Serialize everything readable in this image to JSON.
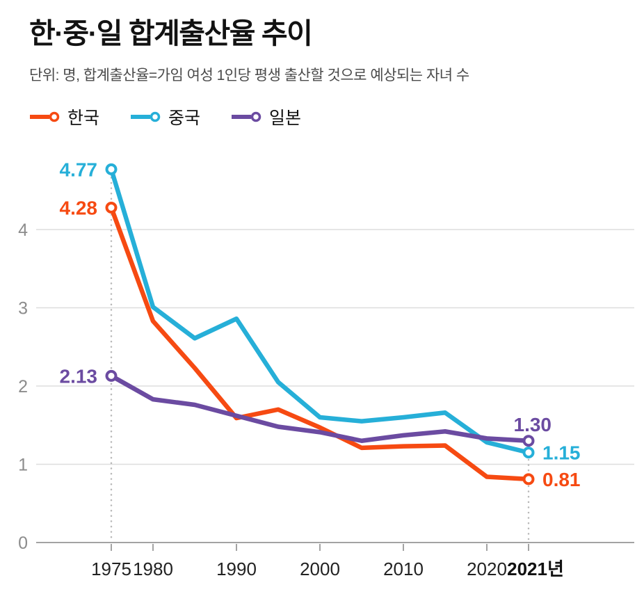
{
  "header": {
    "title": "한·중·일 합계출산율 추이",
    "subtitle": "단위: 명, 합계출산율=가임 여성 1인당 평생 출산할 것으로 예상되는 자녀 수"
  },
  "legend": [
    {
      "key": "korea",
      "label": "한국",
      "color": "#f64a12"
    },
    {
      "key": "china",
      "label": "중국",
      "color": "#26afd8"
    },
    {
      "key": "japan",
      "label": "일본",
      "color": "#6b4ba1"
    }
  ],
  "chart_data": {
    "type": "line",
    "title": "한·중·일 합계출산율 추이",
    "unit": "명",
    "categories": [
      "1975",
      "1980",
      "1985",
      "1990",
      "1995",
      "2000",
      "2005",
      "2010",
      "2015",
      "2020",
      "2021"
    ],
    "series": [
      {
        "key": "korea",
        "name": "한국",
        "color": "#f64a12",
        "values": [
          4.28,
          2.83,
          2.23,
          1.59,
          1.7,
          1.47,
          1.21,
          1.23,
          1.24,
          0.84,
          0.81
        ],
        "start_label": "4.28",
        "end_label": "0.81",
        "end_label_placement": "right"
      },
      {
        "key": "china",
        "name": "중국",
        "color": "#26afd8",
        "values": [
          4.77,
          3.01,
          2.61,
          2.86,
          2.05,
          1.6,
          1.55,
          1.6,
          1.66,
          1.28,
          1.15
        ],
        "start_label": "4.77",
        "end_label": "1.15",
        "end_label_placement": "right"
      },
      {
        "key": "japan",
        "name": "일본",
        "color": "#6b4ba1",
        "values": [
          2.13,
          1.83,
          1.76,
          1.62,
          1.48,
          1.41,
          1.3,
          1.37,
          1.42,
          1.33,
          1.3
        ],
        "start_label": "2.13",
        "end_label": "1.30",
        "end_label_placement": "above"
      }
    ],
    "yticks": [
      0,
      1,
      2,
      3,
      4
    ],
    "ylim": [
      0,
      5
    ],
    "xticks": [
      {
        "index": 0,
        "label": "1975"
      },
      {
        "index": 1,
        "label": "1980"
      },
      {
        "index": 3,
        "label": "1990"
      },
      {
        "index": 5,
        "label": "2000"
      },
      {
        "index": 7,
        "label": "2010"
      },
      {
        "index": 9,
        "label": "2020"
      },
      {
        "index": 10,
        "label": "2021년",
        "bold": true
      }
    ],
    "guides": [
      {
        "index": 0
      },
      {
        "index": 10
      }
    ],
    "grid": "horizontal",
    "legend_position": "top-left"
  }
}
